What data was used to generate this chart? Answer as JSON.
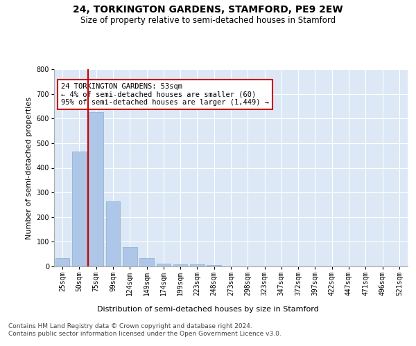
{
  "title": "24, TORKINGTON GARDENS, STAMFORD, PE9 2EW",
  "subtitle": "Size of property relative to semi-detached houses in Stamford",
  "xlabel": "Distribution of semi-detached houses by size in Stamford",
  "ylabel": "Number of semi-detached properties",
  "categories": [
    "25sqm",
    "50sqm",
    "75sqm",
    "99sqm",
    "124sqm",
    "149sqm",
    "174sqm",
    "199sqm",
    "223sqm",
    "248sqm",
    "273sqm",
    "298sqm",
    "323sqm",
    "347sqm",
    "372sqm",
    "397sqm",
    "422sqm",
    "447sqm",
    "471sqm",
    "496sqm",
    "521sqm"
  ],
  "values": [
    35,
    465,
    625,
    265,
    80,
    35,
    12,
    8,
    8,
    5,
    0,
    0,
    0,
    0,
    0,
    0,
    0,
    0,
    0,
    0,
    0
  ],
  "bar_color": "#aec6e8",
  "annotation_text": "24 TORKINGTON GARDENS: 53sqm\n← 4% of semi-detached houses are smaller (60)\n95% of semi-detached houses are larger (1,449) →",
  "annotation_box_color": "#ffffff",
  "annotation_box_edge_color": "#cc0000",
  "vline_x": 1.5,
  "vline_color": "#cc0000",
  "ylim": [
    0,
    800
  ],
  "yticks": [
    0,
    100,
    200,
    300,
    400,
    500,
    600,
    700,
    800
  ],
  "footer": "Contains HM Land Registry data © Crown copyright and database right 2024.\nContains public sector information licensed under the Open Government Licence v3.0.",
  "fig_bg_color": "#ffffff",
  "plot_bg_color": "#dce8f5",
  "title_fontsize": 10,
  "subtitle_fontsize": 8.5,
  "axis_label_fontsize": 8,
  "tick_fontsize": 7,
  "footer_fontsize": 6.5,
  "annotation_fontsize": 7.5
}
